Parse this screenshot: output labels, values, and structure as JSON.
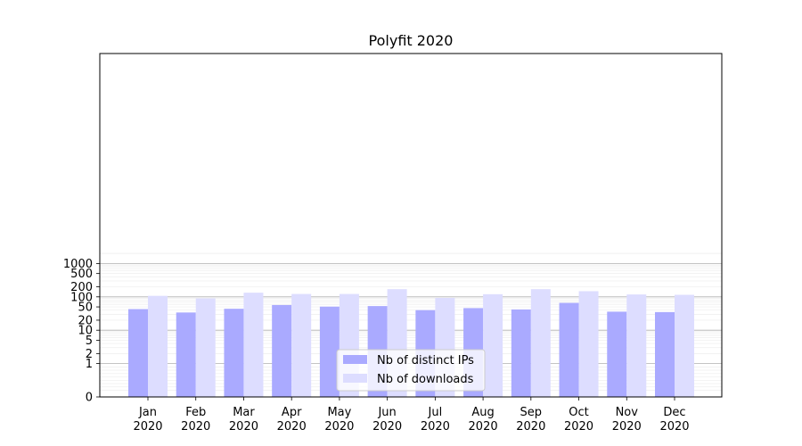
{
  "chart_data": {
    "type": "bar",
    "title": "Polyfit 2020",
    "xlabel": "",
    "ylabel": "",
    "y_scale": "symlog",
    "ylim": [
      0,
      1200
    ],
    "y_ticks": [
      0,
      1,
      2,
      5,
      10,
      20,
      50,
      100,
      200,
      500,
      1000
    ],
    "y_tick_labels": [
      "0",
      "1",
      "2",
      "5",
      "10",
      "20",
      "50",
      "100",
      "200",
      "500",
      "1000"
    ],
    "grid": "y",
    "legend_position": "bottom-center",
    "categories": [
      {
        "month": "Jan",
        "year": "2020"
      },
      {
        "month": "Feb",
        "year": "2020"
      },
      {
        "month": "Mar",
        "year": "2020"
      },
      {
        "month": "Apr",
        "year": "2020"
      },
      {
        "month": "May",
        "year": "2020"
      },
      {
        "month": "Jun",
        "year": "2020"
      },
      {
        "month": "Jul",
        "year": "2020"
      },
      {
        "month": "Aug",
        "year": "2020"
      },
      {
        "month": "Sep",
        "year": "2020"
      },
      {
        "month": "Oct",
        "year": "2020"
      },
      {
        "month": "Nov",
        "year": "2020"
      },
      {
        "month": "Dec",
        "year": "2020"
      }
    ],
    "series": [
      {
        "name": "Nb of distinct IPs",
        "color": "#aaaaff",
        "values": [
          43,
          34,
          44,
          57,
          51,
          53,
          40,
          46,
          42,
          66,
          36,
          35
        ]
      },
      {
        "name": "Nb of downloads",
        "color": "#ddddff",
        "values": [
          107,
          90,
          133,
          122,
          122,
          170,
          93,
          120,
          170,
          148,
          118,
          115
        ]
      }
    ]
  }
}
